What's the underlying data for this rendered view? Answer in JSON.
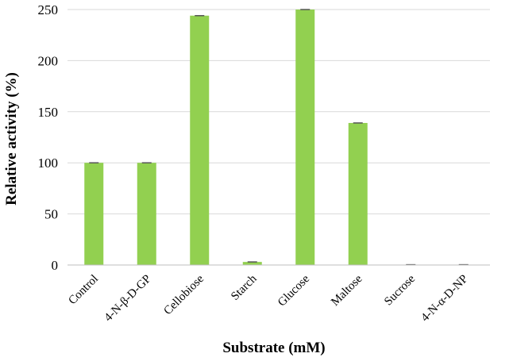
{
  "chart_data": {
    "type": "bar",
    "categories": [
      "Control",
      "4-N-β-D-GP",
      "Cellobiose",
      "Starch",
      "Glucose",
      "Maltose",
      "Sucrose",
      "4-N-α-D-NP"
    ],
    "values": [
      100,
      100,
      244,
      3,
      250,
      139,
      0.3,
      0.3
    ],
    "xlabel": "Substrate (mM)",
    "ylabel": "Relative activity (%)",
    "ylim": [
      0,
      250
    ],
    "yticks": [
      0,
      50,
      100,
      150,
      200,
      250
    ],
    "grid": true,
    "legend": "none",
    "bar_color": "#92d050",
    "error_bar_color": "#555555",
    "grid_color": "#d9d9d9"
  }
}
